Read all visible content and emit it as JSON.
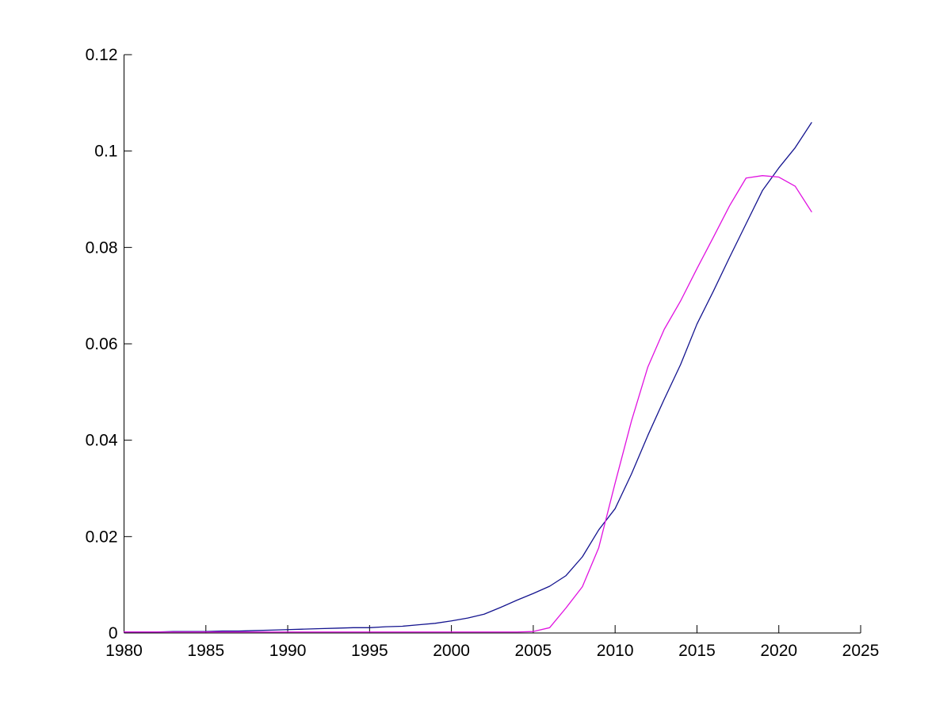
{
  "figure": {
    "background_color": "#ffffff",
    "axis_color": "#000000"
  },
  "chart_data": {
    "type": "line",
    "title": "",
    "xlabel": "",
    "ylabel": "",
    "xlim": [
      1980,
      2025
    ],
    "ylim": [
      0,
      0.12
    ],
    "grid": false,
    "legend": false,
    "x_ticks": [
      1980,
      1985,
      1990,
      1995,
      2000,
      2005,
      2010,
      2015,
      2020,
      2025
    ],
    "x_tick_labels": [
      "1980",
      "1985",
      "1990",
      "1995",
      "2000",
      "2005",
      "2010",
      "2015",
      "2020",
      "2025"
    ],
    "y_ticks": [
      0,
      0.02,
      0.04,
      0.06,
      0.08,
      0.1,
      0.12
    ],
    "y_tick_labels": [
      "0",
      "0.02",
      "0.04",
      "0.06",
      "0.08",
      "0.1",
      "0.12"
    ],
    "x": [
      1980,
      1981,
      1982,
      1983,
      1984,
      1985,
      1986,
      1987,
      1988,
      1989,
      1990,
      1991,
      1992,
      1993,
      1994,
      1995,
      1996,
      1997,
      1998,
      1999,
      2000,
      2001,
      2002,
      2003,
      2004,
      2005,
      2006,
      2007,
      2008,
      2009,
      2010,
      2011,
      2012,
      2013,
      2014,
      2015,
      2016,
      2017,
      2018,
      2019,
      2020,
      2021,
      2022
    ],
    "series": [
      {
        "name": "dark-blue-series",
        "color": "#14148F",
        "values": [
          0.0002,
          0.0002,
          0.0002,
          0.0003,
          0.0003,
          0.0003,
          0.0004,
          0.0004,
          0.0005,
          0.0006,
          0.0007,
          0.0008,
          0.0009,
          0.001,
          0.0011,
          0.0011,
          0.0013,
          0.0014,
          0.0017,
          0.002,
          0.0025,
          0.0031,
          0.0039,
          0.0053,
          0.0068,
          0.0082,
          0.0097,
          0.0119,
          0.0158,
          0.0214,
          0.0258,
          0.033,
          0.041,
          0.0485,
          0.0557,
          0.0641,
          0.0709,
          0.078,
          0.0849,
          0.0918,
          0.0965,
          0.1007,
          0.1059
        ]
      },
      {
        "name": "magenta-series",
        "color": "#E012E0",
        "values": [
          0.0002,
          0.0002,
          0.0002,
          0.0002,
          0.0002,
          0.0002,
          0.0002,
          0.0002,
          0.0002,
          0.0002,
          0.0002,
          0.0002,
          0.0002,
          0.0002,
          0.0002,
          0.0002,
          0.0002,
          0.0002,
          0.0002,
          0.0002,
          0.0002,
          0.0002,
          0.0002,
          0.0002,
          0.0002,
          0.0003,
          0.0011,
          0.0052,
          0.0096,
          0.0177,
          0.0311,
          0.044,
          0.0552,
          0.063,
          0.0689,
          0.0756,
          0.0821,
          0.0887,
          0.0944,
          0.0949,
          0.0946,
          0.0927,
          0.0874
        ]
      }
    ]
  }
}
